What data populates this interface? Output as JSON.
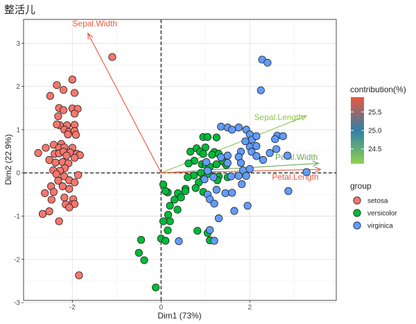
{
  "chart_data": {
    "type": "scatter",
    "title": "整活儿",
    "xlabel": "Dim1 (73%)",
    "ylabel": "Dim2 (22.9%)",
    "xlim": [
      -3.1,
      3.95
    ],
    "ylim": [
      -2.95,
      3.55
    ],
    "x_ticks": [
      -2,
      0,
      2
    ],
    "y_ticks": [
      -3,
      -2,
      -1,
      0,
      1,
      2,
      3
    ],
    "x_tick_labels": [
      "-2",
      "0",
      "2"
    ],
    "y_tick_labels": [
      "-3",
      "-2",
      "-1",
      "0",
      "1",
      "2",
      "3"
    ],
    "grid": true,
    "reference_lines": {
      "x": 0,
      "y": 0,
      "style": "dashed"
    },
    "series": [
      {
        "name": "setosa",
        "color": "#F8766D",
        "points": [
          [
            -1.1,
            2.68
          ],
          [
            -2.0,
            2.16
          ],
          [
            -2.35,
            2.03
          ],
          [
            -2.5,
            1.78
          ],
          [
            -2.2,
            1.92
          ],
          [
            -1.95,
            1.85
          ],
          [
            -2.0,
            1.49
          ],
          [
            -1.88,
            1.48
          ],
          [
            -2.3,
            1.5
          ],
          [
            -2.2,
            1.45
          ],
          [
            -1.95,
            1.37
          ],
          [
            -2.32,
            1.31
          ],
          [
            -2.28,
            1.1
          ],
          [
            -2.12,
            1.1
          ],
          [
            -1.95,
            1.11
          ],
          [
            -2.35,
            1.12
          ],
          [
            -2.18,
            1.0
          ],
          [
            -2.08,
            0.95
          ],
          [
            -1.95,
            0.97
          ],
          [
            -1.92,
            0.88
          ],
          [
            -2.1,
            0.89
          ],
          [
            -2.25,
            0.67
          ],
          [
            -2.42,
            0.65
          ],
          [
            -2.0,
            0.58
          ],
          [
            -2.3,
            0.58
          ],
          [
            -2.18,
            0.59
          ],
          [
            -2.6,
            0.58
          ],
          [
            -2.77,
            0.46
          ],
          [
            -2.4,
            0.44
          ],
          [
            -2.3,
            0.45
          ],
          [
            -2.2,
            0.49
          ],
          [
            -2.05,
            0.47
          ],
          [
            -1.9,
            0.44
          ],
          [
            -1.83,
            0.41
          ],
          [
            -2.13,
            0.4
          ],
          [
            -1.95,
            0.35
          ],
          [
            -2.52,
            0.3
          ],
          [
            -2.38,
            0.24
          ],
          [
            -2.22,
            0.25
          ],
          [
            -2.09,
            0.22
          ],
          [
            -2.17,
            0.11
          ],
          [
            -2.28,
            0.05
          ],
          [
            -2.43,
            0.06
          ],
          [
            -2.36,
            -0.03
          ],
          [
            -1.87,
            -0.05
          ],
          [
            -2.18,
            -0.08
          ],
          [
            -2.07,
            -0.17
          ],
          [
            -2.32,
            -0.18
          ],
          [
            -1.95,
            -0.22
          ],
          [
            -2.22,
            -0.31
          ],
          [
            -2.48,
            -0.31
          ],
          [
            -2.07,
            -0.37
          ],
          [
            -2.42,
            -0.44
          ],
          [
            -2.62,
            -0.47
          ],
          [
            -2.18,
            -0.57
          ],
          [
            -1.98,
            -0.61
          ],
          [
            -2.47,
            -0.62
          ],
          [
            -2.02,
            -0.73
          ],
          [
            -2.15,
            -0.73
          ],
          [
            -1.95,
            -0.72
          ],
          [
            -2.07,
            -0.8
          ],
          [
            -2.67,
            -0.95
          ],
          [
            -2.52,
            -0.89
          ],
          [
            -2.3,
            -1.12
          ],
          [
            -1.85,
            -2.37
          ]
        ]
      },
      {
        "name": "versicolor",
        "color": "#00BA38",
        "points": [
          [
            0.95,
            0.83
          ],
          [
            1.05,
            0.83
          ],
          [
            1.25,
            0.82
          ],
          [
            1.0,
            0.59
          ],
          [
            0.8,
            0.57
          ],
          [
            0.88,
            0.49
          ],
          [
            1.2,
            0.48
          ],
          [
            1.15,
            0.42
          ],
          [
            1.3,
            0.44
          ],
          [
            0.95,
            0.44
          ],
          [
            0.66,
            0.49
          ],
          [
            1.4,
            0.26
          ],
          [
            1.25,
            0.2
          ],
          [
            0.92,
            0.2
          ],
          [
            0.75,
            0.28
          ],
          [
            0.62,
            0.22
          ],
          [
            1.0,
            0.18
          ],
          [
            1.47,
            0.18
          ],
          [
            1.1,
            0.14
          ],
          [
            0.9,
            0.0
          ],
          [
            1.07,
            -0.02
          ],
          [
            0.74,
            -0.06
          ],
          [
            0.6,
            -0.1
          ],
          [
            0.95,
            -0.14
          ],
          [
            1.3,
            -0.08
          ],
          [
            1.27,
            -0.17
          ],
          [
            1.5,
            -0.1
          ],
          [
            0.85,
            -0.22
          ],
          [
            0.78,
            -0.35
          ],
          [
            0.55,
            -0.37
          ],
          [
            0.05,
            -0.27
          ],
          [
            0.15,
            -0.45
          ],
          [
            0.38,
            -0.47
          ],
          [
            0.55,
            -0.42
          ],
          [
            0.95,
            -0.44
          ],
          [
            0.1,
            -0.42
          ],
          [
            0.45,
            -0.57
          ],
          [
            0.3,
            -0.62
          ],
          [
            0.2,
            -0.76
          ],
          [
            0.37,
            -0.85
          ],
          [
            0.16,
            -0.97
          ],
          [
            0.2,
            -1.12
          ],
          [
            0.05,
            -1.12
          ],
          [
            0.15,
            -1.33
          ],
          [
            1.05,
            -1.39
          ],
          [
            0.0,
            -1.52
          ],
          [
            0.1,
            -1.57
          ],
          [
            1.1,
            -1.56
          ],
          [
            0.82,
            -1.34
          ],
          [
            -0.45,
            -1.55
          ],
          [
            -0.5,
            -1.85
          ],
          [
            -0.38,
            -2.02
          ],
          [
            -0.12,
            -2.65
          ]
        ]
      },
      {
        "name": "virginica",
        "color": "#619CFF",
        "points": [
          [
            2.28,
            2.62
          ],
          [
            2.4,
            2.55
          ],
          [
            2.25,
            1.91
          ],
          [
            1.35,
            1.07
          ],
          [
            1.5,
            1.05
          ],
          [
            1.75,
            1.05
          ],
          [
            1.6,
            1.0
          ],
          [
            1.92,
            1.0
          ],
          [
            2.0,
            0.89
          ],
          [
            2.05,
            0.77
          ],
          [
            2.15,
            0.85
          ],
          [
            2.62,
            0.86
          ],
          [
            2.75,
            0.85
          ],
          [
            2.57,
            0.78
          ],
          [
            1.9,
            0.73
          ],
          [
            2.0,
            0.6
          ],
          [
            2.15,
            0.62
          ],
          [
            1.8,
            0.49
          ],
          [
            2.04,
            0.49
          ],
          [
            2.15,
            0.39
          ],
          [
            1.5,
            0.4
          ],
          [
            1.35,
            0.36
          ],
          [
            1.75,
            0.37
          ],
          [
            2.45,
            0.46
          ],
          [
            2.6,
            0.55
          ],
          [
            2.85,
            0.4
          ],
          [
            2.3,
            0.3
          ],
          [
            1.8,
            0.23
          ],
          [
            1.5,
            0.23
          ],
          [
            1.02,
            0.25
          ],
          [
            1.85,
            0.06
          ],
          [
            2.0,
            0.09
          ],
          [
            1.92,
            -0.07
          ],
          [
            1.58,
            -0.08
          ],
          [
            1.75,
            -0.07
          ],
          [
            1.18,
            -0.1
          ],
          [
            1.05,
            0.05
          ],
          [
            0.98,
            -0.15
          ],
          [
            1.82,
            -0.26
          ],
          [
            1.45,
            -0.47
          ],
          [
            1.25,
            -0.39
          ],
          [
            1.05,
            -0.5
          ],
          [
            1.6,
            -0.46
          ],
          [
            1.1,
            -0.61
          ],
          [
            1.2,
            -0.71
          ],
          [
            1.65,
            -0.88
          ],
          [
            1.95,
            -0.76
          ],
          [
            1.3,
            -1.05
          ],
          [
            1.1,
            -1.32
          ],
          [
            1.2,
            -1.57
          ],
          [
            0.4,
            -1.58
          ],
          [
            3.28,
            0.02
          ],
          [
            2.87,
            -0.42
          ]
        ]
      }
    ],
    "arrows": [
      {
        "label": "Sepal.Width",
        "x": -1.65,
        "y": 3.23,
        "contribution": 25.9,
        "color": "#E8583F"
      },
      {
        "label": "Sepal.Length",
        "x": 3.28,
        "y": 1.32,
        "contribution": 24.2,
        "color": "#8CC84B"
      },
      {
        "label": "Petal.Width",
        "x": 3.55,
        "y": 0.22,
        "contribution": 24.9,
        "color": "#6FA95A"
      },
      {
        "label": "Petal.Length",
        "x": 3.6,
        "y": 0.08,
        "contribution": 25.6,
        "color": "#E35C44"
      }
    ],
    "legend": {
      "contribution": {
        "title": "contribution(%)",
        "range": [
          24.1,
          25.9
        ],
        "ticks": [
          24.5,
          25.0,
          25.5
        ],
        "tick_labels": [
          "24.5",
          "25.0",
          "25.5"
        ],
        "colors": [
          "#8FD14F",
          "#2F7FA8",
          "#E8583F"
        ]
      },
      "group": {
        "title": "group",
        "items": [
          {
            "label": "setosa",
            "color": "#F8766D"
          },
          {
            "label": "versicolor",
            "color": "#00BA38"
          },
          {
            "label": "virginica",
            "color": "#619CFF"
          }
        ]
      }
    }
  }
}
